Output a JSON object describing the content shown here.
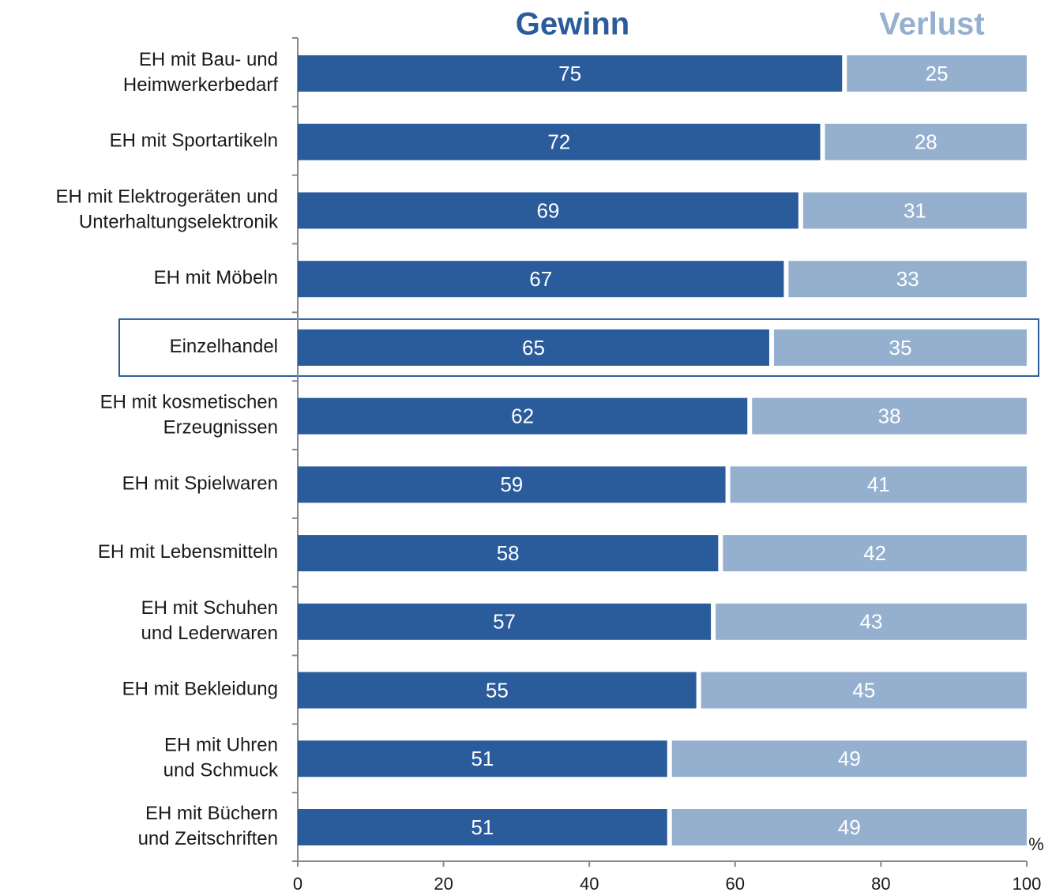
{
  "chart_data": {
    "type": "stacked_bar_horizontal",
    "categories": [
      "EH mit Bau- und\nHeimwerkerbedarf",
      "EH mit Sportartikeln",
      "EH mit Elektrogeräten und\nUnterhaltungselektronik",
      "EH mit Möbeln",
      "Einzelhandel",
      "EH mit kosmetischen\nErzeugnissen",
      "EH mit Spielwaren",
      "EH mit Lebensmitteln",
      "EH mit Schuhen\nund Lederwaren",
      "EH mit Bekleidung",
      "EH mit Uhren\nund Schmuck",
      "EH mit Büchern\nund Zeitschriften"
    ],
    "series": [
      {
        "name": "Gewinn",
        "color": "#2a5b9b",
        "values": [
          75,
          72,
          69,
          67,
          65,
          62,
          59,
          58,
          57,
          55,
          51,
          51
        ]
      },
      {
        "name": "Verlust",
        "color": "#95b0cf",
        "values": [
          25,
          28,
          31,
          33,
          35,
          38,
          41,
          42,
          43,
          45,
          49,
          49
        ]
      }
    ],
    "xlim": [
      0,
      100
    ],
    "xticks": [
      0,
      20,
      40,
      60,
      80,
      100
    ],
    "x_unit": "%",
    "highlight": 4
  }
}
